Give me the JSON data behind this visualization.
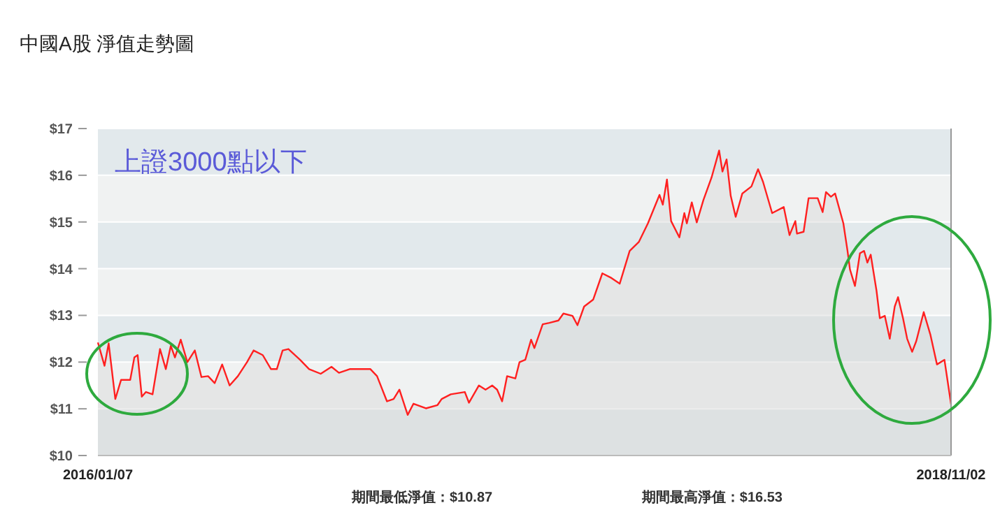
{
  "chart_data": {
    "type": "area",
    "title": "中國A股 淨值走勢圖",
    "annotations": [
      "上證3000點以下",
      "期間最低淨值：$10.87",
      "期間最高淨值：$16.53"
    ],
    "x": [
      "2016-01-07",
      "2016-01-15",
      "2016-01-20",
      "2016-01-28",
      "2016-02-04",
      "2016-02-15",
      "2016-02-20",
      "2016-02-24",
      "2016-02-29",
      "2016-03-05",
      "2016-03-13",
      "2016-03-22",
      "2016-03-29",
      "2016-04-04",
      "2016-04-09",
      "2016-04-16",
      "2016-04-24",
      "2016-05-03",
      "2016-05-11",
      "2016-05-19",
      "2016-05-27",
      "2016-06-05",
      "2016-06-14",
      "2016-06-24",
      "2016-07-05",
      "2016-07-13",
      "2016-07-24",
      "2016-08-03",
      "2016-08-10",
      "2016-08-17",
      "2016-08-24",
      "2016-09-07",
      "2016-09-18",
      "2016-10-02",
      "2016-10-15",
      "2016-10-24",
      "2016-11-06",
      "2016-12-01",
      "2016-12-09",
      "2016-12-21",
      "2016-12-29",
      "2017-01-05",
      "2017-01-15",
      "2017-01-22",
      "2017-02-06",
      "2017-02-20",
      "2017-02-25",
      "2017-03-08",
      "2017-03-25",
      "2017-03-30",
      "2017-04-11",
      "2017-04-19",
      "2017-04-27",
      "2017-05-03",
      "2017-05-09",
      "2017-05-15",
      "2017-05-25",
      "2017-05-30",
      "2017-06-06",
      "2017-06-13",
      "2017-06-17",
      "2017-06-27",
      "2017-07-05",
      "2017-07-16",
      "2017-07-22",
      "2017-08-02",
      "2017-08-08",
      "2017-08-16",
      "2017-08-27",
      "2017-09-07",
      "2017-09-18",
      "2017-09-28",
      "2017-10-10",
      "2017-10-21",
      "2017-11-01",
      "2017-11-15",
      "2017-11-19",
      "2017-11-24",
      "2017-11-29",
      "2017-12-09",
      "2017-12-15",
      "2017-12-18",
      "2017-12-24",
      "2017-12-30",
      "2018-01-07",
      "2018-01-17",
      "2018-01-26",
      "2018-01-30",
      "2018-02-04",
      "2018-02-09",
      "2018-02-15",
      "2018-02-23",
      "2018-03-06",
      "2018-03-14",
      "2018-03-20",
      "2018-03-31",
      "2018-04-14",
      "2018-04-21",
      "2018-04-28",
      "2018-04-30",
      "2018-05-08",
      "2018-05-14",
      "2018-05-25",
      "2018-05-31",
      "2018-06-04",
      "2018-06-10",
      "2018-06-15",
      "2018-06-25",
      "2018-06-30",
      "2018-07-03",
      "2018-07-09",
      "2018-07-15",
      "2018-07-20",
      "2018-07-24",
      "2018-07-28",
      "2018-08-04",
      "2018-08-08",
      "2018-08-14",
      "2018-08-20",
      "2018-08-26",
      "2018-08-30",
      "2018-09-05",
      "2018-09-10",
      "2018-09-16",
      "2018-09-21",
      "2018-09-30",
      "2018-10-08",
      "2018-10-16",
      "2018-10-25",
      "2018-11-02"
    ],
    "series": [
      {
        "color": "#ff2020",
        "values": [
          12.42,
          11.92,
          12.4,
          11.21,
          11.62,
          11.62,
          12.1,
          12.15,
          11.26,
          11.36,
          11.31,
          12.28,
          11.85,
          12.35,
          12.1,
          12.48,
          12.0,
          12.25,
          11.68,
          11.7,
          11.55,
          11.95,
          11.5,
          11.7,
          12.0,
          12.25,
          12.15,
          11.85,
          11.85,
          12.25,
          12.28,
          12.05,
          11.85,
          11.75,
          11.9,
          11.77,
          11.85,
          11.85,
          11.7,
          11.16,
          11.21,
          11.41,
          10.87,
          11.11,
          11.01,
          11.08,
          11.21,
          11.31,
          11.36,
          11.13,
          11.5,
          11.41,
          11.5,
          11.41,
          11.16,
          11.7,
          11.65,
          12.0,
          12.05,
          12.48,
          12.3,
          12.81,
          12.84,
          12.89,
          13.04,
          12.99,
          12.79,
          13.19,
          13.34,
          13.9,
          13.8,
          13.68,
          14.38,
          14.57,
          14.97,
          15.58,
          15.37,
          15.91,
          15.02,
          14.67,
          15.19,
          14.97,
          15.42,
          14.99,
          15.47,
          15.96,
          16.53,
          16.08,
          16.34,
          15.56,
          15.11,
          15.61,
          15.76,
          16.13,
          15.86,
          15.19,
          15.32,
          14.72,
          15.02,
          14.75,
          14.79,
          15.51,
          15.51,
          15.21,
          15.64,
          15.54,
          15.61,
          14.97,
          14.38,
          13.98,
          13.63,
          14.33,
          14.38,
          14.13,
          14.3,
          13.53,
          12.94,
          12.99,
          12.5,
          13.19,
          13.39,
          12.94,
          12.5,
          12.22,
          12.45,
          13.07,
          12.59,
          11.95,
          12.05,
          11.1
        ]
      }
    ],
    "xlim": [
      "2016-01-07",
      "2018-11-02"
    ],
    "xticks": [
      {
        "value": "2016-01-07",
        "label": "2016/01/07"
      },
      {
        "value": "2018-11-02",
        "label": "2018/11/02"
      }
    ],
    "ylim": [
      10,
      17
    ],
    "yticks": [
      {
        "value": 10,
        "label": "$10"
      },
      {
        "value": 11,
        "label": "$11"
      },
      {
        "value": 12,
        "label": "$12"
      },
      {
        "value": 13,
        "label": "$13"
      },
      {
        "value": 14,
        "label": "$14"
      },
      {
        "value": 15,
        "label": "$15"
      },
      {
        "value": 16,
        "label": "$16"
      },
      {
        "value": 17,
        "label": "$17"
      }
    ],
    "grid": "y",
    "line_style": "solid"
  }
}
